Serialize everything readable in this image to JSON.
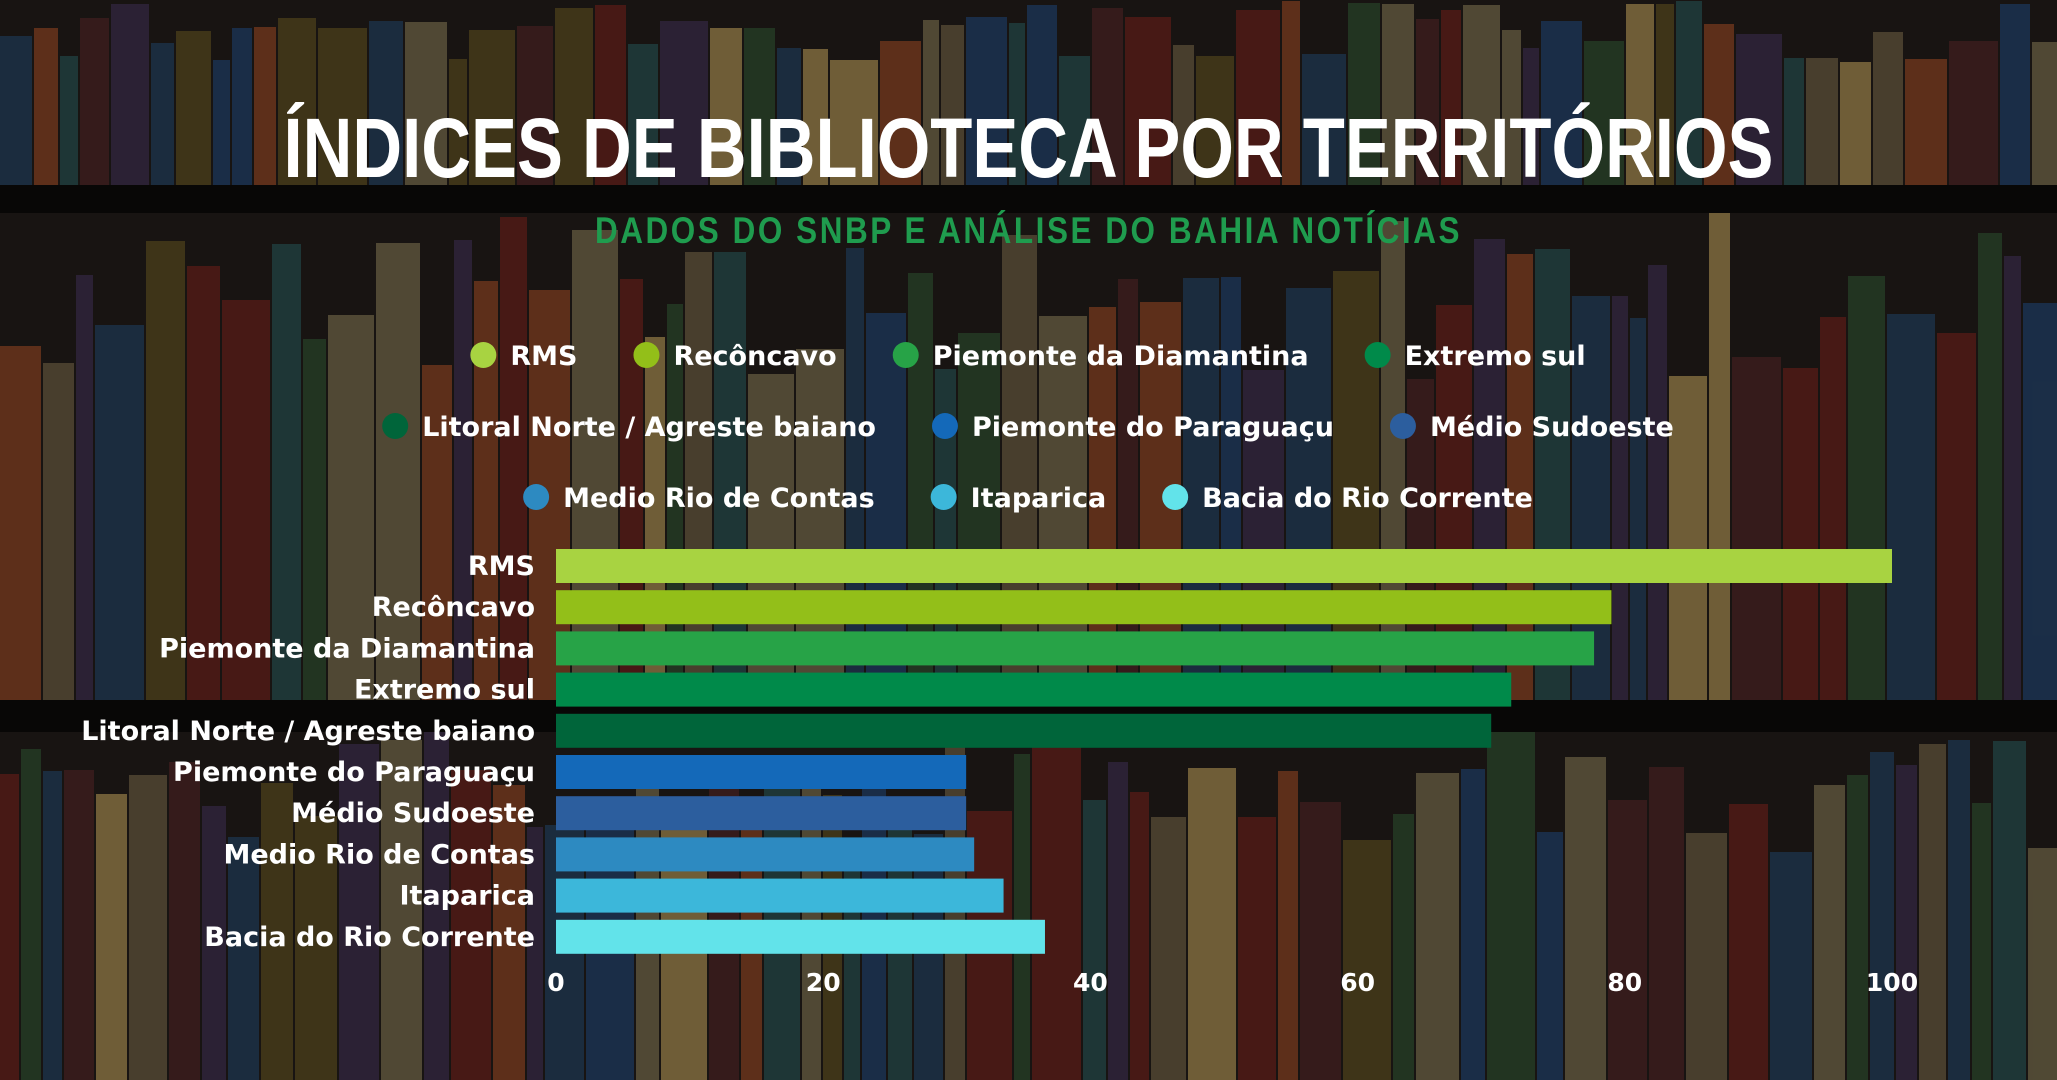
{
  "header": {
    "title": "ÍNDICES DE BIBLIOTECA POR TERRITÓRIOS",
    "subtitle": "DADOS DO SNBP E ANÁLISE DO BAHIA NOTÍCIAS"
  },
  "chart_data": {
    "type": "bar",
    "orientation": "horizontal",
    "title": "ÍNDICES DE BIBLIOTECA POR TERRITÓRIOS",
    "subtitle": "DADOS DO SNBP E ANÁLISE DO BAHIA NOTÍCIAS",
    "xlabel": "",
    "ylabel": "",
    "xlim": [
      0,
      100
    ],
    "xticks": [
      0,
      20,
      40,
      60,
      80,
      100
    ],
    "grid": false,
    "legend_position": "top",
    "categories": [
      "RMS",
      "Recôncavo",
      "Piemonte da Diamantina",
      "Extremo sul",
      "Litoral Norte / Agreste baiano",
      "Piemonte do Paraguaçu",
      "Médio Sudoeste",
      "Medio Rio de Contas",
      "Itaparica",
      "Bacia do Rio Corrente"
    ],
    "values": [
      100,
      79,
      77.7,
      71.5,
      70,
      30.7,
      30.7,
      31.3,
      33.5,
      36.6
    ],
    "colors": [
      "#a8d341",
      "#93bf19",
      "#27a347",
      "#008a4a",
      "#00653a",
      "#1469b9",
      "#2c5e9e",
      "#2d8ac1",
      "#3cb7da",
      "#62e3ea"
    ]
  }
}
